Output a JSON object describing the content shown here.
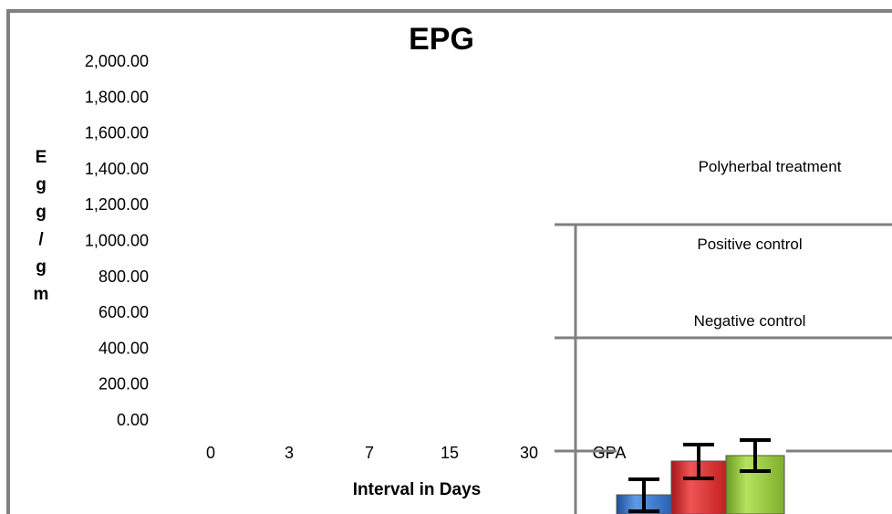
{
  "chart_data": {
    "type": "bar",
    "title": "EPG",
    "xlabel": "Interval in Days",
    "ylabel": "Egg/gm",
    "ylim": [
      0,
      2000
    ],
    "y_ticks": [
      "2,000.00",
      "1,800.00",
      "1,600.00",
      "1,400.00",
      "1,200.00",
      "1,000.00",
      "800.00",
      "600.00",
      "400.00",
      "200.00",
      "0.00"
    ],
    "categories": [
      "0",
      "3",
      "7",
      "15",
      "30",
      "GPA"
    ],
    "legend": [
      "Polyherbal treatment",
      "Positive control",
      "Negative control"
    ],
    "series_colors": [
      "#3b78c9",
      "#d92b2b",
      "#8fc13a"
    ]
  }
}
